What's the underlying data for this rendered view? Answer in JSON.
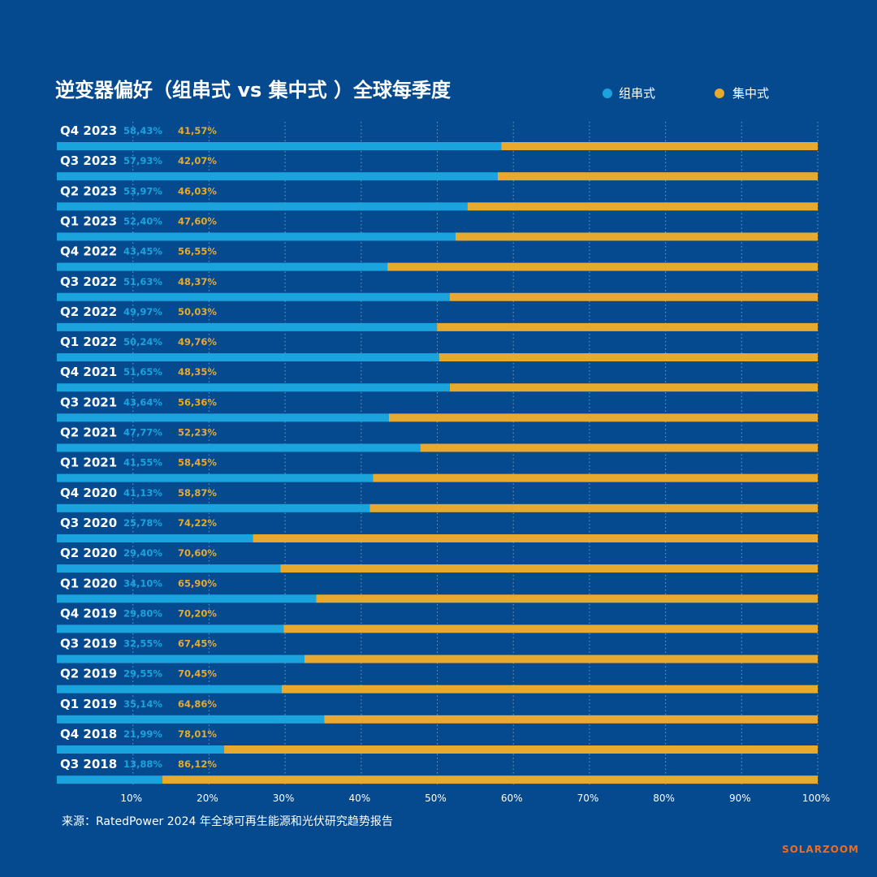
{
  "chart_data": {
    "type": "bar",
    "orientation": "horizontal",
    "stacked": true,
    "title": "逆变器偏好（组串式 vs 集中式 ）全球每季度",
    "categories": [
      "Q4 2023",
      "Q3 2023",
      "Q2 2023",
      "Q1 2023",
      "Q4 2022",
      "Q3 2022",
      "Q2 2022",
      "Q1 2022",
      "Q4 2021",
      "Q3 2021",
      "Q2 2021",
      "Q1 2021",
      "Q4 2020",
      "Q3 2020",
      "Q2 2020",
      "Q1 2020",
      "Q4 2019",
      "Q3 2019",
      "Q2 2019",
      "Q1 2019",
      "Q4 2018",
      "Q3 2018"
    ],
    "series": [
      {
        "name": "组串式",
        "color": "#1aa3dc",
        "values": [
          58.43,
          57.93,
          53.97,
          52.4,
          43.45,
          51.63,
          49.97,
          50.24,
          51.65,
          43.64,
          47.77,
          41.55,
          41.13,
          25.78,
          29.4,
          34.1,
          29.8,
          32.55,
          29.55,
          35.14,
          21.99,
          13.88
        ],
        "labels": [
          "58,43%",
          "57,93%",
          "53,97%",
          "52,40%",
          "43,45%",
          "51,63%",
          "49,97%",
          "50,24%",
          "51,65%",
          "43,64%",
          "47,77%",
          "41,55%",
          "41,13%",
          "25,78%",
          "29,40%",
          "34,10%",
          "29,80%",
          "32,55%",
          "29,55%",
          "35,14%",
          "21,99%",
          "13,88%"
        ]
      },
      {
        "name": "集中式",
        "color": "#e8aa2e",
        "values": [
          41.57,
          42.07,
          46.03,
          47.6,
          56.55,
          48.37,
          50.03,
          49.76,
          48.35,
          56.36,
          52.23,
          58.45,
          58.87,
          74.22,
          70.6,
          65.9,
          70.2,
          67.45,
          70.45,
          64.86,
          78.01,
          86.12
        ],
        "labels": [
          "41,57%",
          "42,07%",
          "46,03%",
          "47,60%",
          "56,55%",
          "48,37%",
          "50,03%",
          "49,76%",
          "48,35%",
          "56,36%",
          "52,23%",
          "58,45%",
          "58,87%",
          "74,22%",
          "70,60%",
          "65,90%",
          "70,20%",
          "67,45%",
          "70,45%",
          "64,86%",
          "78,01%",
          "86,12%"
        ]
      }
    ],
    "xlim": [
      0,
      100
    ],
    "x_ticks": [
      10,
      20,
      30,
      40,
      50,
      60,
      70,
      80,
      90,
      100
    ],
    "x_tick_labels": [
      "10%",
      "20%",
      "30%",
      "40%",
      "50%",
      "60%",
      "70%",
      "80%",
      "90%",
      "100%"
    ],
    "grid": true,
    "legend_position": "top-right",
    "source": "来源：RatedPower 2024 年全球可再生能源和光伏研究趋势报告",
    "brand": "SOLARZOOM"
  },
  "colors": {
    "background": "#054a8f",
    "string": "#1aa3dc",
    "central": "#e8aa2e",
    "brand": "#f26b1d"
  }
}
